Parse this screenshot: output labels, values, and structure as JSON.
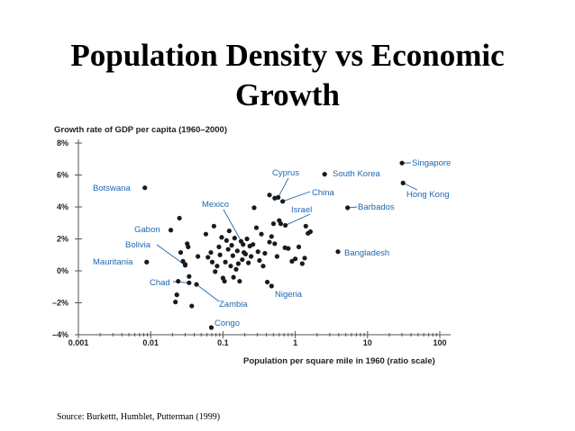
{
  "slide": {
    "title_line1": "Population Density vs Economic",
    "title_line2": "Growth",
    "source": "Source: Burkettt, Humblet, Putterman (1999)"
  },
  "chart_data": {
    "type": "scatter",
    "ylabel": "Growth rate of GDP per capita (1960–2000)",
    "xlabel": "Population per square mile in 1960 (ratio scale)",
    "x_scale": "log",
    "xlim": [
      0.001,
      100
    ],
    "ylim": [
      -4,
      8
    ],
    "x_ticks": [
      {
        "value": 0.001,
        "label": "0.001"
      },
      {
        "value": 0.01,
        "label": "0.01"
      },
      {
        "value": 0.1,
        "label": "0.1"
      },
      {
        "value": 1,
        "label": "1"
      },
      {
        "value": 10,
        "label": "10"
      },
      {
        "value": 100,
        "label": "100"
      }
    ],
    "y_ticks": [
      {
        "value": 8,
        "label": "8%"
      },
      {
        "value": 6,
        "label": "6%"
      },
      {
        "value": 4,
        "label": "4%"
      },
      {
        "value": 2,
        "label": "2%"
      },
      {
        "value": 0,
        "label": "0%"
      },
      {
        "value": -2,
        "label": "–2%"
      },
      {
        "value": -4,
        "label": "–4%"
      }
    ],
    "labeled_points": [
      {
        "name": "Botswana",
        "x": 0.0083,
        "y": 5.2
      },
      {
        "name": "Gabon",
        "x": 0.019,
        "y": 2.55
      },
      {
        "name": "Bolivia",
        "x": 0.03,
        "y": 0.35
      },
      {
        "name": "Mauritania",
        "x": 0.0088,
        "y": 0.55
      },
      {
        "name": "Chad",
        "x": 0.034,
        "y": -0.75
      },
      {
        "name": "Zambia",
        "x": 0.043,
        "y": -0.85
      },
      {
        "name": "Congo",
        "x": 0.069,
        "y": -3.55
      },
      {
        "name": "Mexico",
        "x": 0.19,
        "y": 1.65
      },
      {
        "name": "Cyprus",
        "x": 0.58,
        "y": 4.6
      },
      {
        "name": "China",
        "x": 0.67,
        "y": 4.35
      },
      {
        "name": "Israel",
        "x": 0.73,
        "y": 2.85
      },
      {
        "name": "Nigeria",
        "x": 0.47,
        "y": -0.95
      },
      {
        "name": "South Korea",
        "x": 2.55,
        "y": 6.05
      },
      {
        "name": "Barbados",
        "x": 5.3,
        "y": 3.95
      },
      {
        "name": "Bangladesh",
        "x": 3.9,
        "y": 1.2
      },
      {
        "name": "Singapore",
        "x": 30,
        "y": 6.75
      },
      {
        "name": "Hong Kong",
        "x": 31,
        "y": 5.5
      }
    ],
    "unlabeled_points": [
      [
        0.025,
        3.3
      ],
      [
        0.032,
        1.7
      ],
      [
        0.033,
        1.5
      ],
      [
        0.026,
        1.15
      ],
      [
        0.028,
        0.6
      ],
      [
        0.03,
        0.4
      ],
      [
        0.034,
        -0.35
      ],
      [
        0.024,
        -0.65
      ],
      [
        0.023,
        -1.5
      ],
      [
        0.022,
        -1.95
      ],
      [
        0.037,
        -2.2
      ],
      [
        0.045,
        0.9
      ],
      [
        0.058,
        2.3
      ],
      [
        0.062,
        0.85
      ],
      [
        0.068,
        1.15
      ],
      [
        0.071,
        0.55
      ],
      [
        0.075,
        2.8
      ],
      [
        0.078,
        -0.05
      ],
      [
        0.083,
        0.3
      ],
      [
        0.088,
        1.5
      ],
      [
        0.091,
        1.0
      ],
      [
        0.096,
        2.1
      ],
      [
        0.1,
        -0.45
      ],
      [
        0.105,
        -0.65
      ],
      [
        0.108,
        0.55
      ],
      [
        0.112,
        1.9
      ],
      [
        0.118,
        1.35
      ],
      [
        0.122,
        2.5
      ],
      [
        0.128,
        0.3
      ],
      [
        0.132,
        1.6
      ],
      [
        0.137,
        0.95
      ],
      [
        0.14,
        -0.4
      ],
      [
        0.145,
        2.05
      ],
      [
        0.152,
        0.1
      ],
      [
        0.158,
        1.25
      ],
      [
        0.163,
        0.45
      ],
      [
        0.17,
        -0.65
      ],
      [
        0.178,
        1.85
      ],
      [
        0.185,
        0.7
      ],
      [
        0.195,
        1.15
      ],
      [
        0.205,
        1.05
      ],
      [
        0.215,
        2.0
      ],
      [
        0.225,
        0.5
      ],
      [
        0.235,
        1.55
      ],
      [
        0.245,
        0.9
      ],
      [
        0.26,
        1.65
      ],
      [
        0.27,
        3.95
      ],
      [
        0.29,
        2.7
      ],
      [
        0.305,
        1.2
      ],
      [
        0.32,
        0.65
      ],
      [
        0.34,
        2.3
      ],
      [
        0.36,
        0.3
      ],
      [
        0.38,
        1.1
      ],
      [
        0.41,
        -0.7
      ],
      [
        0.44,
        1.8
      ],
      [
        0.47,
        2.15
      ],
      [
        0.5,
        2.95
      ],
      [
        0.52,
        1.7
      ],
      [
        0.56,
        0.9
      ],
      [
        0.6,
        3.15
      ],
      [
        0.63,
        2.95
      ],
      [
        0.72,
        1.45
      ],
      [
        0.8,
        1.4
      ],
      [
        0.9,
        0.6
      ],
      [
        1.0,
        0.75
      ],
      [
        1.12,
        1.5
      ],
      [
        1.25,
        0.45
      ],
      [
        1.35,
        0.8
      ],
      [
        1.4,
        2.8
      ],
      [
        1.5,
        2.35
      ],
      [
        1.62,
        2.45
      ],
      [
        0.44,
        4.75
      ],
      [
        0.52,
        4.55
      ]
    ]
  }
}
